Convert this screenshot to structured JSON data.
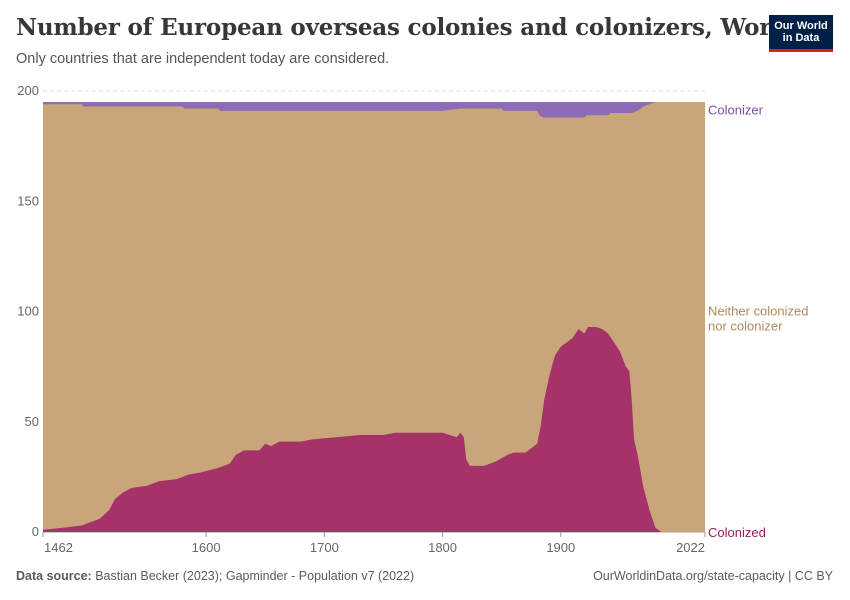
{
  "header": {
    "title": "Number of European overseas colonies and colonizers, World",
    "subtitle": "Only countries that are independent today are considered.",
    "logo_line1": "Our World",
    "logo_line2": "in Data"
  },
  "footer": {
    "source_label": "Data source:",
    "source_text": "Bastian Becker (2023); Gapminder - Population v7 (2022)",
    "url_text": "OurWorldinData.org/state-capacity | CC BY"
  },
  "colors": {
    "colonized": "#a6326a",
    "colonized_label": "#9a1c5a",
    "neither": "#c9a679",
    "neither_label": "#b0895a",
    "colonizer": "#8e6bb5",
    "colonizer_label": "#7b4fa3",
    "grid": "#dddddd"
  },
  "chart_data": {
    "type": "area",
    "stacked": true,
    "xlim": [
      1462,
      2022
    ],
    "ylim": [
      0,
      200
    ],
    "x_ticks": [
      "1462",
      "1600",
      "1700",
      "1800",
      "1900",
      "2022"
    ],
    "y_ticks": [
      "0",
      "50",
      "100",
      "150",
      "200"
    ],
    "total": 195,
    "series": [
      {
        "name": "Colonized",
        "points": [
          [
            1462,
            1
          ],
          [
            1480,
            2
          ],
          [
            1495,
            3
          ],
          [
            1510,
            6
          ],
          [
            1518,
            10
          ],
          [
            1523,
            15
          ],
          [
            1530,
            18
          ],
          [
            1537,
            20
          ],
          [
            1550,
            21
          ],
          [
            1560,
            23
          ],
          [
            1575,
            24
          ],
          [
            1585,
            26
          ],
          [
            1595,
            27
          ],
          [
            1610,
            29
          ],
          [
            1620,
            31
          ],
          [
            1625,
            35
          ],
          [
            1632,
            37
          ],
          [
            1645,
            37
          ],
          [
            1650,
            40
          ],
          [
            1655,
            39
          ],
          [
            1662,
            41
          ],
          [
            1680,
            41
          ],
          [
            1690,
            42
          ],
          [
            1710,
            43
          ],
          [
            1730,
            44
          ],
          [
            1750,
            44
          ],
          [
            1760,
            45
          ],
          [
            1780,
            45
          ],
          [
            1800,
            45
          ],
          [
            1812,
            43
          ],
          [
            1815,
            45
          ],
          [
            1818,
            43
          ],
          [
            1820,
            33
          ],
          [
            1823,
            30
          ],
          [
            1835,
            30
          ],
          [
            1845,
            32
          ],
          [
            1855,
            35
          ],
          [
            1860,
            36
          ],
          [
            1870,
            36
          ],
          [
            1875,
            38
          ],
          [
            1880,
            40
          ],
          [
            1883,
            48
          ],
          [
            1886,
            60
          ],
          [
            1890,
            70
          ],
          [
            1895,
            80
          ],
          [
            1900,
            84
          ],
          [
            1910,
            88
          ],
          [
            1915,
            92
          ],
          [
            1920,
            90
          ],
          [
            1923,
            93
          ],
          [
            1930,
            93
          ],
          [
            1935,
            92
          ],
          [
            1940,
            90
          ],
          [
            1945,
            86
          ],
          [
            1950,
            82
          ],
          [
            1955,
            75
          ],
          [
            1958,
            73
          ],
          [
            1960,
            60
          ],
          [
            1962,
            42
          ],
          [
            1965,
            35
          ],
          [
            1970,
            20
          ],
          [
            1975,
            10
          ],
          [
            1980,
            2
          ],
          [
            1985,
            0
          ],
          [
            2022,
            0
          ]
        ]
      },
      {
        "name": "Neither colonized nor colonizer"
      },
      {
        "name": "Colonizer",
        "points": [
          [
            1462,
            1
          ],
          [
            1495,
            1
          ],
          [
            1496,
            2
          ],
          [
            1580,
            2
          ],
          [
            1582,
            3
          ],
          [
            1610,
            3
          ],
          [
            1612,
            4
          ],
          [
            1800,
            4
          ],
          [
            1815,
            3
          ],
          [
            1850,
            3
          ],
          [
            1852,
            4
          ],
          [
            1880,
            4
          ],
          [
            1882,
            6
          ],
          [
            1885,
            7
          ],
          [
            1920,
            7
          ],
          [
            1922,
            6
          ],
          [
            1940,
            6
          ],
          [
            1942,
            5
          ],
          [
            1960,
            5
          ],
          [
            1965,
            4
          ],
          [
            1970,
            2
          ],
          [
            1975,
            1
          ],
          [
            1980,
            0
          ],
          [
            2022,
            0
          ]
        ]
      }
    ]
  }
}
